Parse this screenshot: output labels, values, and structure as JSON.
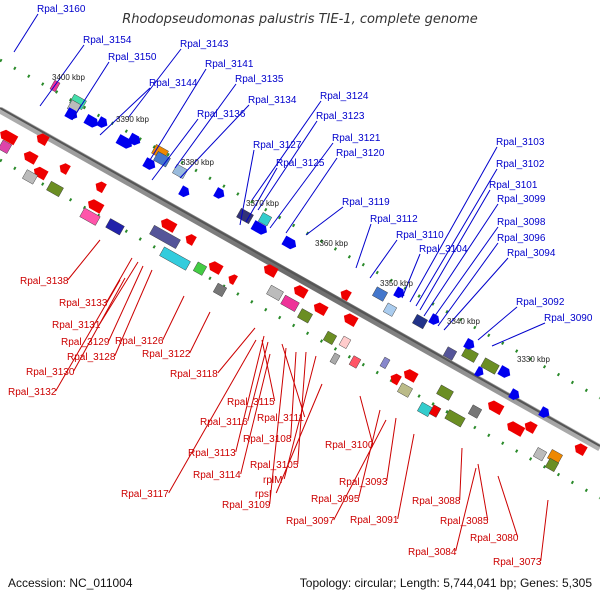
{
  "title": "Rhodopseudomonas palustris TIE-1, complete genome",
  "footer": {
    "accession": "Accession: NC_011004",
    "topology": "Topology: circular; Length: 5,744,041 bp; Genes: 5,305"
  },
  "kbp_labels": [
    "3400 kbp",
    "3390 kbp",
    "3380 kbp",
    "3370 kbp",
    "3360 kbp",
    "3350 kbp",
    "3340 kbp",
    "3330 kbp"
  ],
  "upper_labels": [
    "Rpal_3160",
    "Rpal_3154",
    "Rpal_3150",
    "Rpal_3143",
    "Rpal_3144",
    "Rpal_3141",
    "Rpal_3135",
    "Rpal_3134",
    "Rpal_3136",
    "Rpal_3124",
    "Rpal_3123",
    "Rpal_3127",
    "Rpal_3121",
    "Rpal_3125",
    "Rpal_3120",
    "Rpal_3103",
    "Rpal_3102",
    "Rpal_3101",
    "Rpal_3119",
    "Rpal_3099",
    "Rpal_3112",
    "Rpal_3098",
    "Rpal_3110",
    "Rpal_3096",
    "Rpal_3104",
    "Rpal_3094",
    "Rpal_3092",
    "Rpal_3090"
  ],
  "lower_labels": [
    "Rpal_3138",
    "Rpal_3133",
    "Rpal_3131",
    "Rpal_3129",
    "Rpal_3126",
    "Rpal_3128",
    "Rpal_3122",
    "Rpal_3130",
    "Rpal_3132",
    "Rpal_3118",
    "Rpal_3115",
    "Rpal_3116",
    "Rpal_3111",
    "Rpal_3108",
    "Rpal_3113",
    "Rpal_3100",
    "Rpal_3114",
    "Rpal_3105",
    "rplM",
    "Rpal_3117",
    "Rpal_3109",
    "rpsI",
    "Rpal_3093",
    "Rpal_3095",
    "Rpal_3088",
    "Rpal_3097",
    "Rpal_3091",
    "Rpal_3085",
    "Rpal_3080",
    "Rpal_3084",
    "Rpal_3073"
  ],
  "colors": {
    "forward": "#0000ee",
    "reverse": "#ee0000",
    "backbone": "#888888",
    "tick": "#2a8a2a",
    "label_forward": "#0000cc",
    "label_reverse": "#cc0000"
  }
}
